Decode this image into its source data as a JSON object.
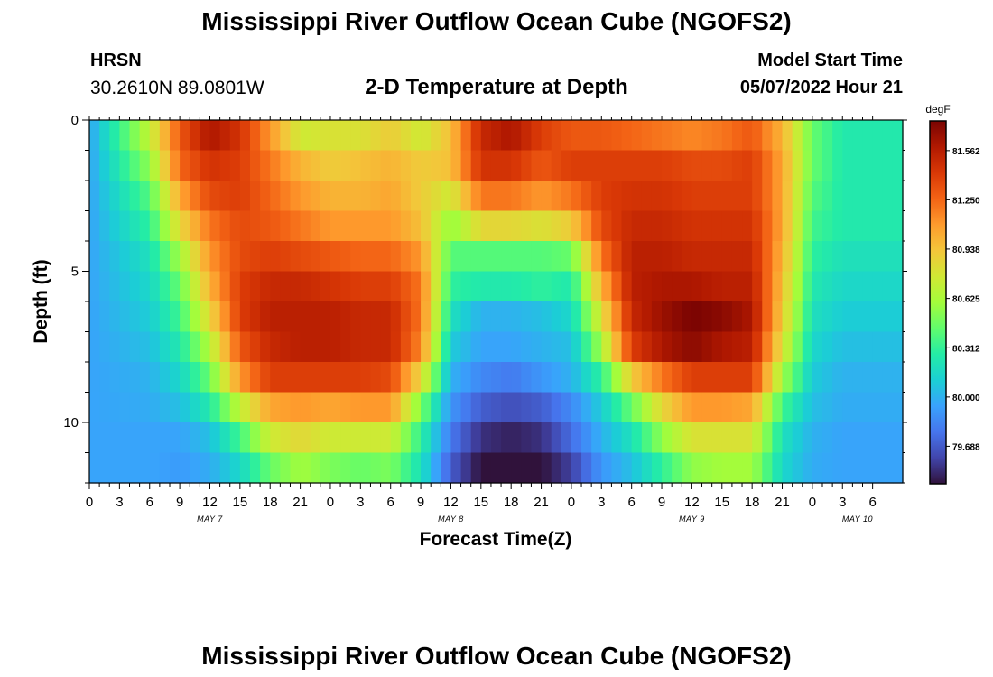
{
  "header": {
    "title": "Mississippi River Outflow Ocean Cube (NGOFS2)",
    "station": "HRSN",
    "coordinates": "30.2610N  89.0801W",
    "subtitle": "2-D Temperature at Depth",
    "model_start_label": "Model Start Time",
    "model_start_value": "05/07/2022 Hour 21"
  },
  "footer": {
    "title": "Mississippi River Outflow Ocean Cube (NGOFS2)"
  },
  "chart_data": {
    "type": "heatmap",
    "title": "2-D Temperature at Depth",
    "xlabel": "Forecast Time(Z)",
    "ylabel": "Depth (ft)",
    "x_range_hours": [
      0,
      81
    ],
    "x_ticks": [
      {
        "h": 0,
        "label": "0"
      },
      {
        "h": 3,
        "label": "3"
      },
      {
        "h": 6,
        "label": "6"
      },
      {
        "h": 9,
        "label": "9"
      },
      {
        "h": 12,
        "label": "12"
      },
      {
        "h": 15,
        "label": "15"
      },
      {
        "h": 18,
        "label": "18"
      },
      {
        "h": 21,
        "label": "21"
      },
      {
        "h": 24,
        "label": "0"
      },
      {
        "h": 27,
        "label": "3"
      },
      {
        "h": 30,
        "label": "6"
      },
      {
        "h": 33,
        "label": "9"
      },
      {
        "h": 36,
        "label": "12"
      },
      {
        "h": 39,
        "label": "15"
      },
      {
        "h": 42,
        "label": "18"
      },
      {
        "h": 45,
        "label": "21"
      },
      {
        "h": 48,
        "label": "0"
      },
      {
        "h": 51,
        "label": "3"
      },
      {
        "h": 54,
        "label": "6"
      },
      {
        "h": 57,
        "label": "9"
      },
      {
        "h": 60,
        "label": "12"
      },
      {
        "h": 63,
        "label": "15"
      },
      {
        "h": 66,
        "label": "18"
      },
      {
        "h": 69,
        "label": "21"
      },
      {
        "h": 72,
        "label": "0"
      },
      {
        "h": 75,
        "label": "3"
      },
      {
        "h": 78,
        "label": "6"
      }
    ],
    "date_labels": [
      {
        "h": 12,
        "label": "MAY 7"
      },
      {
        "h": 36,
        "label": "MAY 8"
      },
      {
        "h": 60,
        "label": "MAY 9"
      },
      {
        "h": 76.5,
        "label": "MAY 10"
      }
    ],
    "y_range_ft": [
      0,
      12
    ],
    "y_ticks": [
      {
        "v": 0,
        "label": "0"
      },
      {
        "v": 5,
        "label": "5"
      },
      {
        "v": 10,
        "label": "10"
      }
    ],
    "colorbar": {
      "unit": "degF",
      "min": 79.45,
      "max": 81.75,
      "ticks": [
        "81.562",
        "81.250",
        "80.938",
        "80.625",
        "80.312",
        "80.000",
        "79.688"
      ],
      "colors": [
        "#30123b",
        "#4145ab",
        "#4675ed",
        "#39a2fc",
        "#1bcfd4",
        "#24eca6",
        "#61fc6c",
        "#a4fc3b",
        "#d1e834",
        "#f3c63a",
        "#fe9b2d",
        "#f36315",
        "#d93806",
        "#b11901",
        "#7a0402"
      ]
    },
    "depth_rows_ft": [
      0.5,
      1.5,
      2.5,
      3.5,
      4.5,
      5.5,
      6.5,
      7.5,
      8.5,
      9.5,
      10.5,
      11.5
    ],
    "profile_hours": [
      0,
      6,
      9,
      12,
      15,
      18,
      21,
      24,
      27,
      30,
      33,
      36,
      39,
      42,
      45,
      48,
      51,
      54,
      57,
      60,
      63,
      66,
      69,
      72,
      75,
      81
    ],
    "temperature_grid_degF": [
      [
        79.95,
        80.7,
        81.3,
        81.6,
        81.45,
        81.1,
        80.75,
        80.8,
        80.8,
        80.9,
        80.75,
        80.95,
        81.5,
        81.6,
        81.4,
        81.3,
        81.3,
        81.25,
        81.2,
        81.15,
        81.2,
        81.3,
        81.0,
        80.45,
        80.25,
        80.25
      ],
      [
        79.95,
        80.55,
        81.25,
        81.45,
        81.4,
        81.2,
        81.0,
        80.9,
        80.95,
        81.0,
        80.9,
        80.95,
        81.45,
        81.45,
        81.3,
        81.4,
        81.4,
        81.4,
        81.4,
        81.35,
        81.35,
        81.4,
        81.05,
        80.45,
        80.25,
        80.25
      ],
      [
        79.95,
        80.4,
        81.05,
        81.35,
        81.4,
        81.25,
        81.1,
        81.0,
        81.0,
        81.05,
        80.9,
        80.75,
        81.2,
        81.2,
        81.1,
        81.2,
        81.4,
        81.45,
        81.45,
        81.4,
        81.4,
        81.4,
        81.05,
        80.4,
        80.25,
        80.25
      ],
      [
        79.95,
        80.3,
        80.85,
        81.2,
        81.35,
        81.3,
        81.2,
        81.1,
        81.1,
        81.1,
        80.95,
        80.55,
        80.85,
        80.85,
        80.8,
        80.9,
        81.35,
        81.5,
        81.5,
        81.45,
        81.45,
        81.45,
        81.05,
        80.35,
        80.25,
        80.25
      ],
      [
        79.95,
        80.2,
        80.6,
        81.1,
        81.35,
        81.4,
        81.35,
        81.3,
        81.25,
        81.25,
        81.1,
        80.4,
        80.4,
        80.4,
        80.4,
        80.45,
        81.2,
        81.55,
        81.55,
        81.5,
        81.5,
        81.5,
        81.0,
        80.3,
        80.2,
        80.2
      ],
      [
        79.95,
        80.15,
        80.45,
        81.0,
        81.4,
        81.5,
        81.5,
        81.45,
        81.4,
        81.4,
        81.2,
        80.3,
        80.25,
        80.25,
        80.3,
        80.25,
        81.0,
        81.55,
        81.6,
        81.6,
        81.55,
        81.55,
        80.95,
        80.25,
        80.15,
        80.15
      ],
      [
        79.95,
        80.1,
        80.35,
        80.85,
        81.4,
        81.55,
        81.55,
        81.55,
        81.5,
        81.5,
        81.2,
        80.2,
        80.0,
        80.0,
        80.05,
        80.15,
        80.8,
        81.5,
        81.65,
        81.75,
        81.7,
        81.6,
        80.9,
        80.2,
        80.1,
        80.1
      ],
      [
        79.95,
        80.05,
        80.25,
        80.65,
        81.3,
        81.5,
        81.55,
        81.55,
        81.5,
        81.5,
        81.15,
        80.1,
        79.95,
        79.95,
        80.0,
        80.05,
        80.6,
        81.4,
        81.6,
        81.7,
        81.6,
        81.55,
        80.8,
        80.15,
        80.05,
        80.05
      ],
      [
        79.95,
        80.0,
        80.15,
        80.45,
        81.1,
        81.4,
        81.4,
        81.4,
        81.4,
        81.35,
        80.85,
        80.0,
        79.85,
        79.8,
        79.9,
        80.0,
        80.3,
        80.9,
        81.2,
        81.4,
        81.4,
        81.4,
        80.6,
        80.1,
        80.0,
        80.0
      ],
      [
        79.95,
        79.98,
        80.05,
        80.25,
        80.7,
        81.05,
        81.1,
        81.05,
        81.1,
        81.1,
        80.5,
        79.9,
        79.7,
        79.65,
        79.7,
        79.85,
        80.1,
        80.45,
        80.85,
        81.1,
        81.1,
        81.05,
        80.35,
        80.05,
        79.98,
        79.98
      ],
      [
        79.95,
        79.95,
        79.95,
        80.05,
        80.35,
        80.75,
        80.85,
        80.75,
        80.75,
        80.75,
        80.3,
        79.8,
        79.55,
        79.5,
        79.55,
        79.75,
        80.0,
        80.2,
        80.55,
        80.8,
        80.8,
        80.8,
        80.2,
        80.0,
        79.95,
        79.95
      ],
      [
        79.95,
        79.95,
        79.92,
        79.98,
        80.15,
        80.45,
        80.6,
        80.5,
        80.45,
        80.5,
        80.2,
        79.7,
        79.45,
        79.42,
        79.45,
        79.6,
        79.9,
        80.05,
        80.3,
        80.55,
        80.6,
        80.6,
        80.15,
        79.98,
        79.95,
        79.95
      ]
    ]
  }
}
